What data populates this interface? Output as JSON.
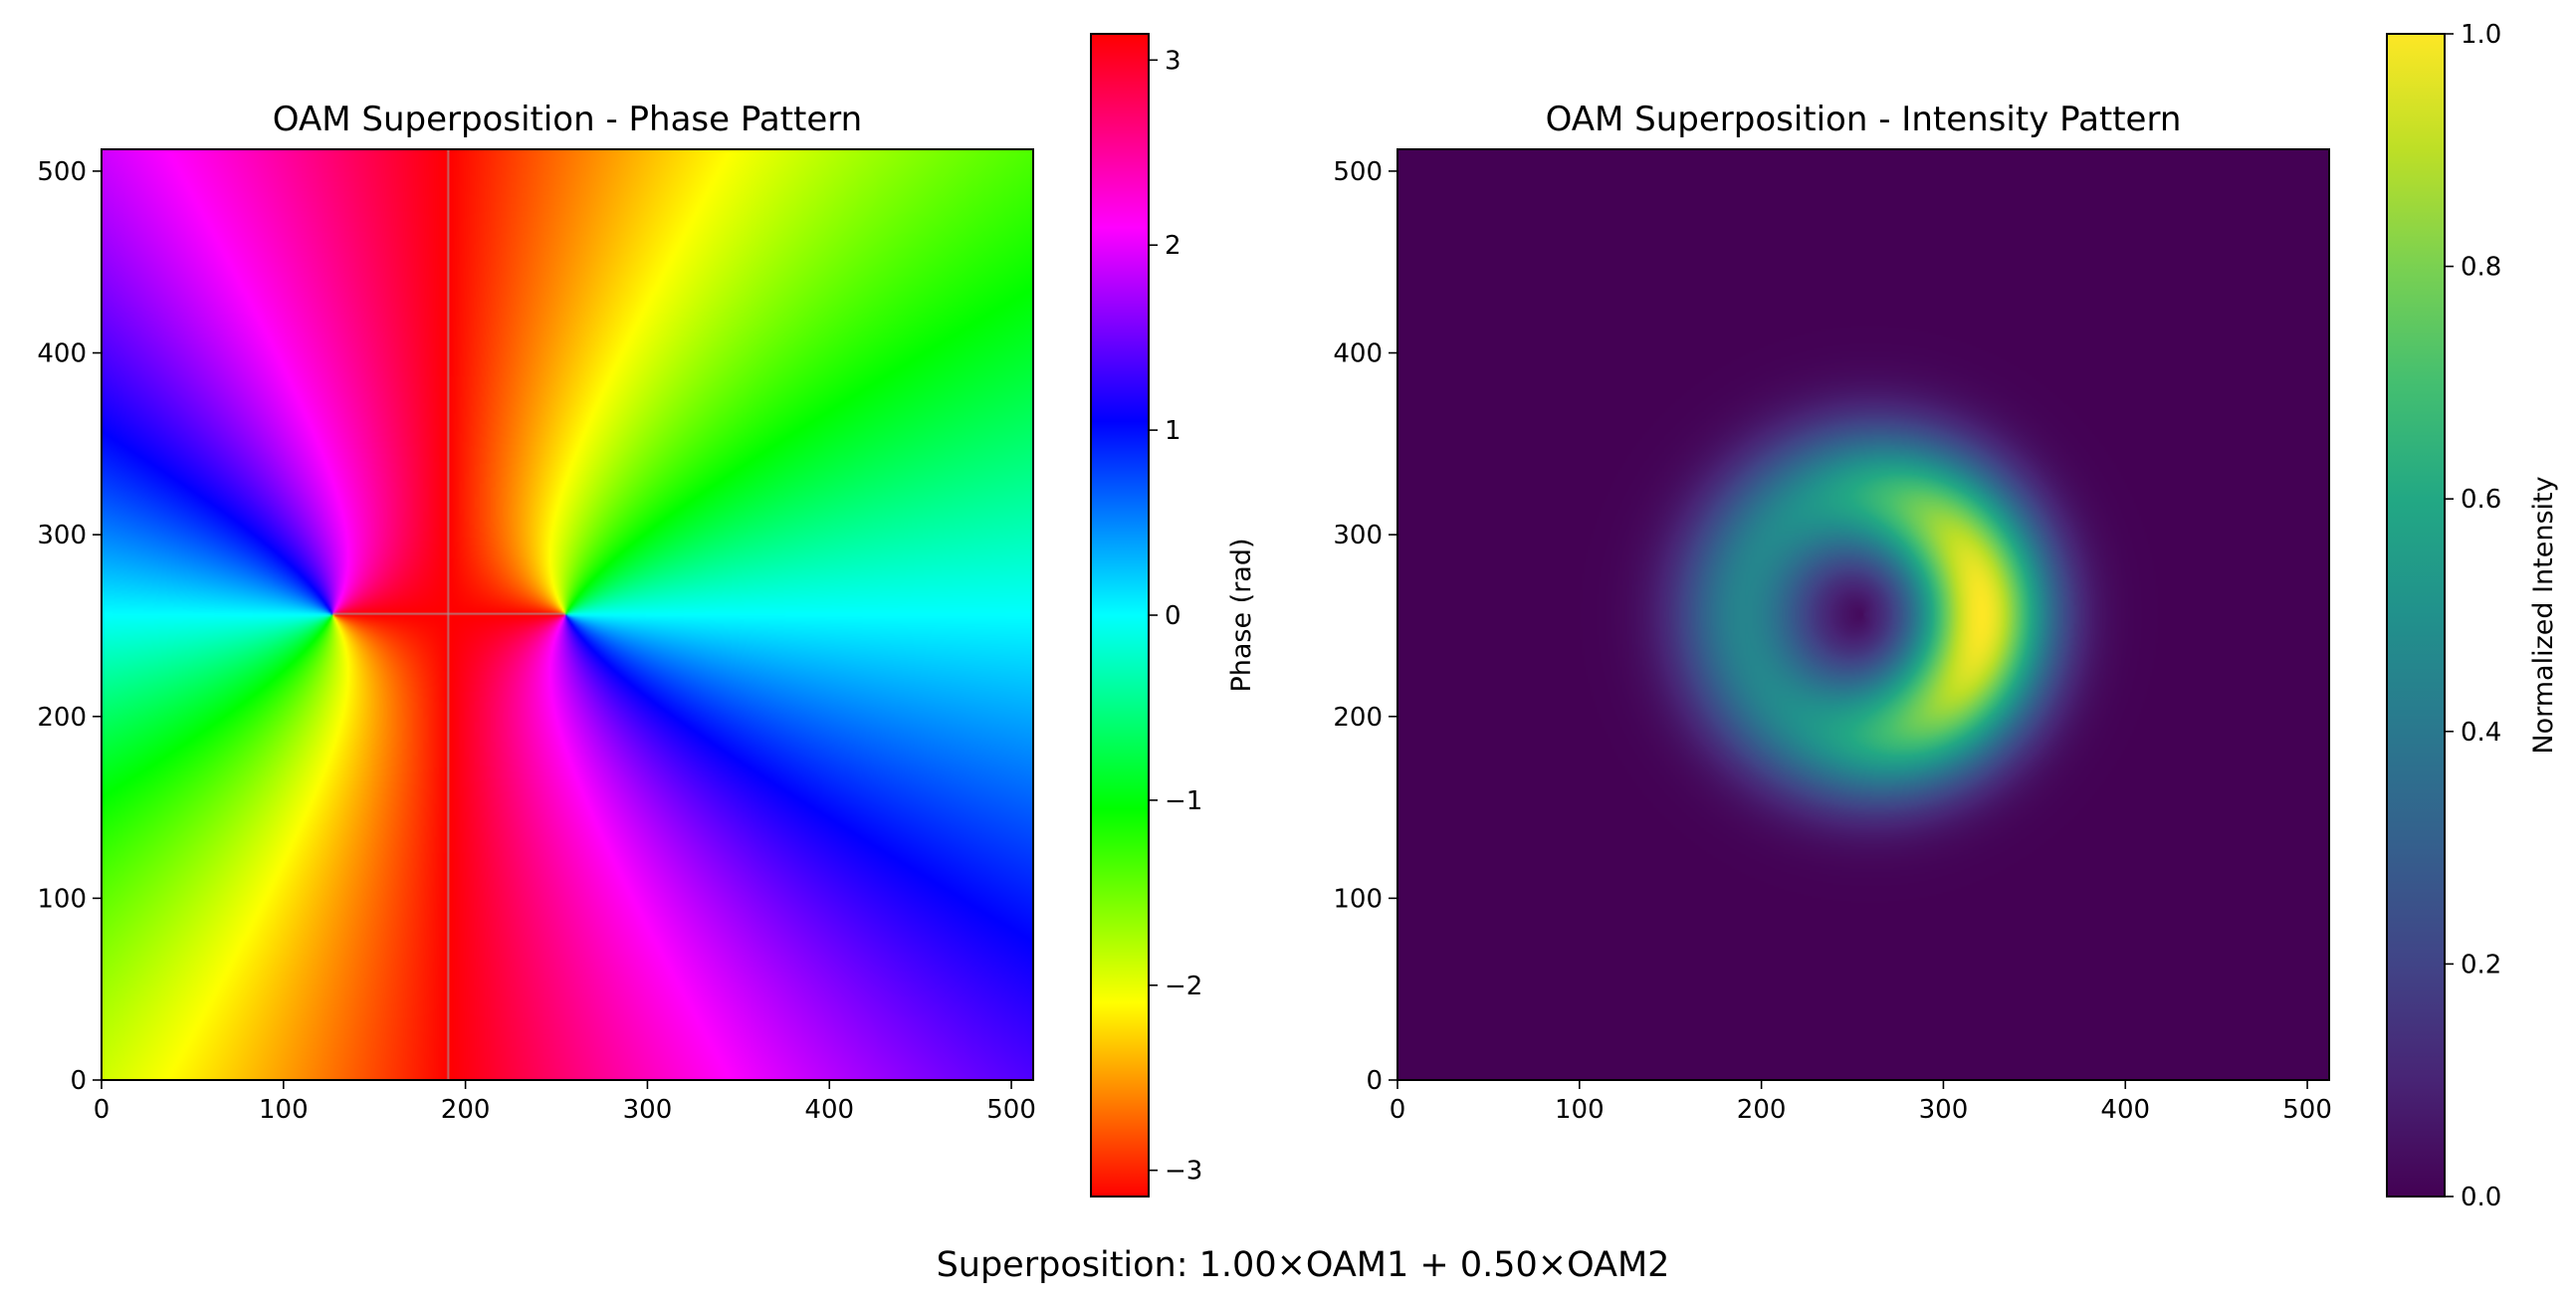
{
  "figure": {
    "suptitle": "Superposition: 1.00×OAM1 + 0.50×OAM2"
  },
  "chart_data": [
    {
      "type": "heatmap",
      "title": "OAM Superposition - Phase Pattern",
      "xlabel": "",
      "ylabel": "",
      "xlim": [
        0,
        512
      ],
      "ylim": [
        0,
        512
      ],
      "xticks": [
        "0",
        "100",
        "200",
        "300",
        "400",
        "500"
      ],
      "yticks": [
        "0",
        "100",
        "200",
        "300",
        "400",
        "500"
      ],
      "colormap": "hsv",
      "colorbar": {
        "label": "Phase (rad)",
        "range": [
          -3.14159,
          3.14159
        ],
        "ticks": [
          "−3",
          "−2",
          "−1",
          "0",
          "1",
          "2",
          "3"
        ]
      },
      "field": {
        "description_values": "phase = arg(1.00·e^{i·l1·θ1} + 0.50·e^{i·l2·θ2}) ; two phase singularities",
        "singularities": [
          [
            127,
            256
          ],
          [
            255,
            256
          ]
        ],
        "seam_x": 190,
        "grid": false
      }
    },
    {
      "type": "heatmap",
      "title": "OAM Superposition - Intensity Pattern",
      "xlabel": "",
      "ylabel": "",
      "xlim": [
        0,
        512
      ],
      "ylim": [
        0,
        512
      ],
      "xticks": [
        "0",
        "100",
        "200",
        "300",
        "400",
        "500"
      ],
      "yticks": [
        "0",
        "100",
        "200",
        "300",
        "400",
        "500"
      ],
      "colormap": "viridis",
      "colorbar": {
        "label": "Normalized Intensity",
        "range": [
          0.0,
          1.0
        ],
        "ticks": [
          "0.0",
          "0.2",
          "0.4",
          "0.6",
          "0.8",
          "1.0"
        ]
      },
      "field": {
        "center": [
          256,
          256
        ],
        "ring_radius": 65,
        "ring_width": 38,
        "dark_core_center": [
          256,
          256
        ],
        "peak_direction": "+x",
        "peak_value": 1.0,
        "background_value": 0.0,
        "grid": false
      }
    }
  ],
  "colors": {
    "background": "#ffffff",
    "axis": "#000000"
  }
}
